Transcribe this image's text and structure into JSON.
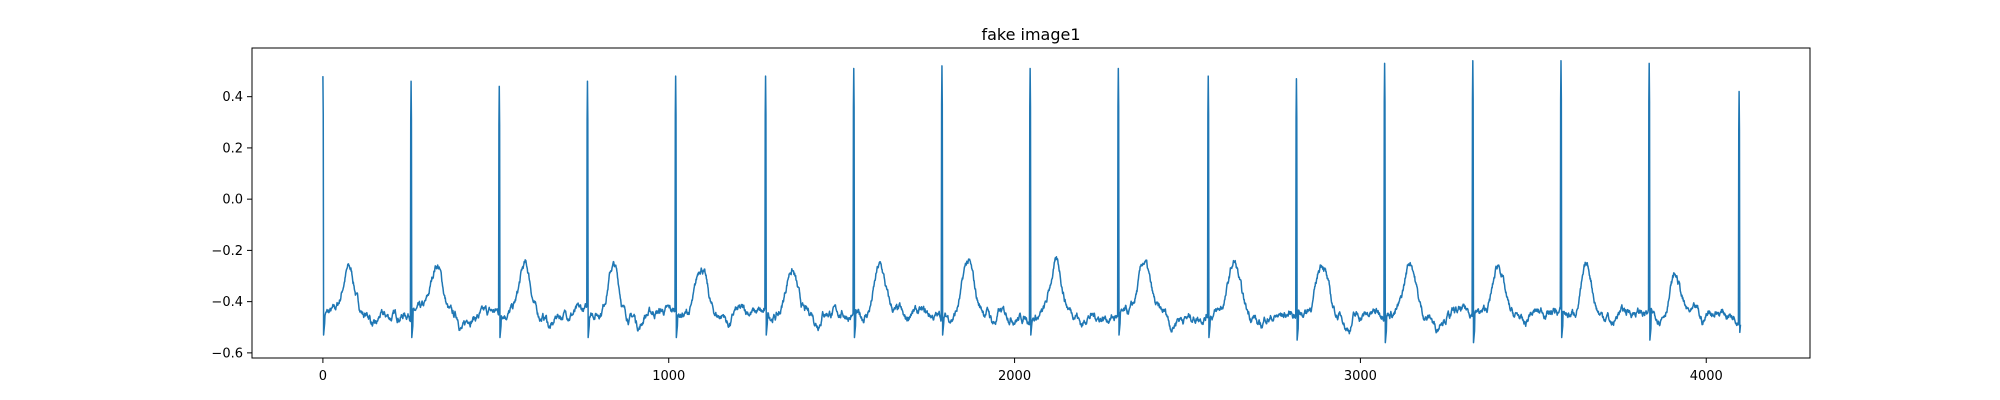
{
  "chart_data": {
    "type": "line",
    "title": "fake image1",
    "xlabel": "",
    "ylabel": "",
    "xlim": [
      -205,
      4300
    ],
    "ylim": [
      -0.62,
      0.59
    ],
    "xticks": [
      0,
      1000,
      2000,
      3000,
      4000
    ],
    "xtick_labels": [
      "0",
      "1000",
      "2000",
      "3000",
      "4000"
    ],
    "yticks": [
      -0.6,
      -0.4,
      -0.2,
      0.0,
      0.2,
      0.4
    ],
    "ytick_labels": [
      "−0.6",
      "−0.4",
      "−0.2",
      "0.0",
      "0.2",
      "0.4"
    ],
    "grid": false,
    "line_color": "#1f77b4",
    "series": [
      {
        "n_points": 4100,
        "beat_positions": [
          0,
          255,
          510,
          765,
          1020,
          1280,
          1535,
          1790,
          2045,
          2300,
          2560,
          2815,
          3070,
          3325,
          3580,
          3835,
          4095
        ],
        "beat_peaks": [
          0.48,
          0.46,
          0.44,
          0.46,
          0.48,
          0.48,
          0.51,
          0.52,
          0.51,
          0.51,
          0.48,
          0.47,
          0.53,
          0.54,
          0.54,
          0.53,
          0.42
        ],
        "beat_troughs": [
          -0.53,
          -0.54,
          -0.54,
          -0.54,
          -0.54,
          -0.53,
          -0.54,
          -0.53,
          -0.53,
          -0.53,
          -0.54,
          -0.55,
          -0.56,
          -0.56,
          -0.54,
          -0.55,
          -0.52
        ],
        "twave_peaks": [
          -0.28,
          -0.26,
          -0.26,
          -0.25,
          -0.25,
          -0.26,
          -0.26,
          -0.25,
          -0.26,
          -0.26,
          -0.26,
          -0.25,
          -0.24,
          -0.25,
          -0.26,
          -0.29
        ],
        "baseline": -0.45,
        "noise_amplitude": 0.02
      }
    ]
  }
}
